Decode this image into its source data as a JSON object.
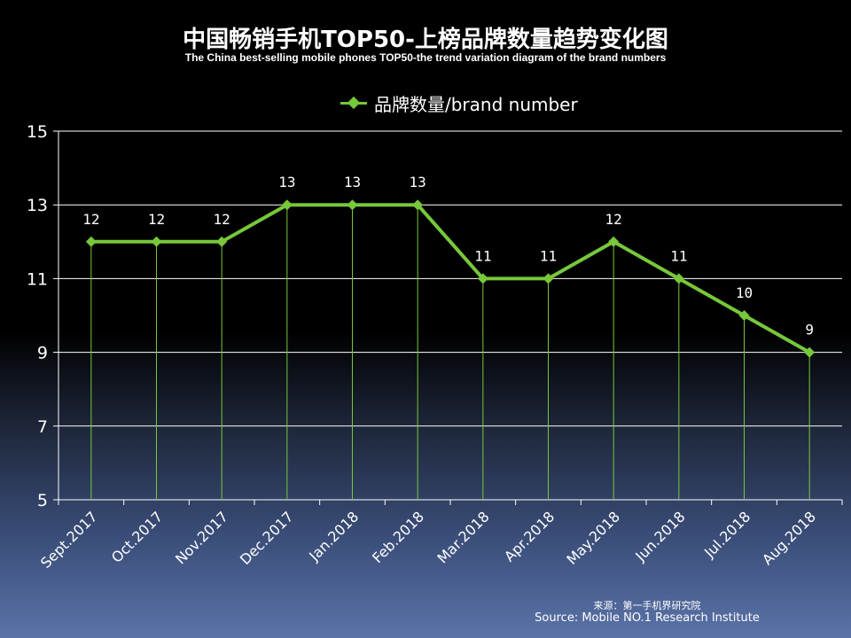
{
  "colors": {
    "series": "#77c83a",
    "grid": "#ffffff",
    "dropline": "#77c83a",
    "text": "#ffffff"
  },
  "chart_data": {
    "type": "line",
    "title": "中国畅销手机TOP50-上榜品牌数量趋势变化图",
    "subtitle": "The China best-selling mobile phones TOP50-the trend variation diagram of the brand numbers",
    "categories": [
      "Sept.2017",
      "Oct.2017",
      "Nov.2017",
      "Dec.2017",
      "Jan.2018",
      "Feb.2018",
      "Mar.2018",
      "Apr.2018",
      "May.2018",
      "Jun.2018",
      "Jul.2018",
      "Aug.2018"
    ],
    "series": [
      {
        "name": "品牌数量/brand number",
        "values": [
          12,
          12,
          12,
          13,
          13,
          13,
          11,
          11,
          12,
          11,
          10,
          9
        ]
      }
    ],
    "data_labels": [
      "12",
      "12",
      "12",
      "13",
      "13",
      "13",
      "11",
      "11",
      "12",
      "11",
      "10",
      "9"
    ],
    "y_ticks": [
      "5",
      "7",
      "9",
      "11",
      "13",
      "15"
    ],
    "ylim": [
      5,
      15
    ],
    "xlabel": "",
    "ylabel": "",
    "grid": true,
    "legend_position": "top-center",
    "marker": "diamond",
    "drop_lines": true
  },
  "source": {
    "cn": "来源：第一手机界研究院",
    "en": "Source: Mobile NO.1 Research Institute"
  }
}
